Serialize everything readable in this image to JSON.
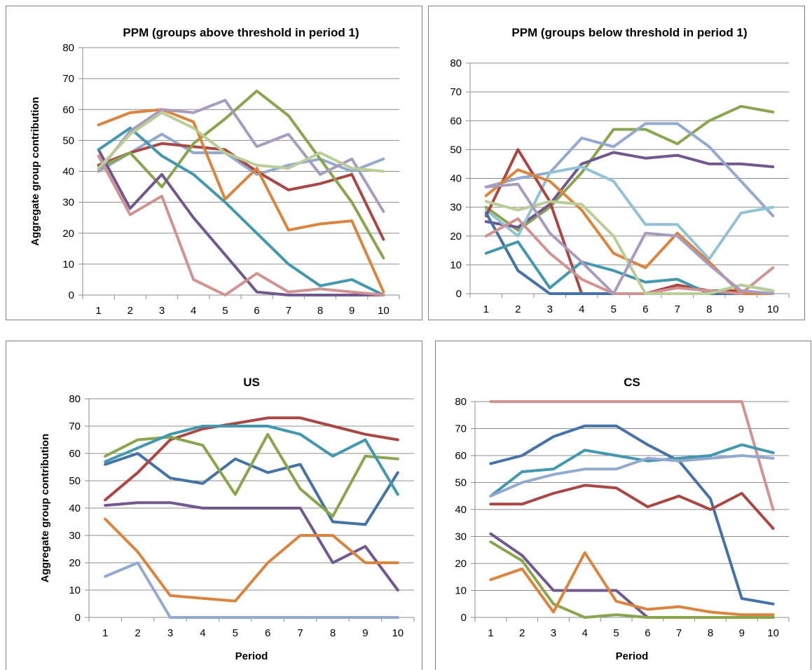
{
  "palette": [
    "#4572a7",
    "#aa4643",
    "#89a54e",
    "#71588f",
    "#4198af",
    "#db843d",
    "#93a9cf",
    "#d19392",
    "#b9cd96",
    "#a99bbd",
    "#91c3d5",
    "#e8a56c"
  ],
  "chart_data": [
    {
      "type": "line",
      "title": "PPM (groups above threshold in period 1)",
      "ylabel": "Aggregate group contribution",
      "xlabel": "",
      "x": [
        1,
        2,
        3,
        4,
        5,
        6,
        7,
        8,
        9,
        10
      ],
      "ylim": [
        0,
        80
      ],
      "yticks": [
        0,
        10,
        20,
        30,
        40,
        50,
        60,
        70,
        80
      ],
      "grid": true,
      "series": [
        {
          "color": "#93a9cf",
          "values": [
            40,
            46,
            52,
            46,
            46,
            39,
            42,
            44,
            40,
            44
          ]
        },
        {
          "color": "#aa4643",
          "values": [
            42,
            46,
            49,
            48,
            47,
            40,
            34,
            36,
            39,
            18
          ]
        },
        {
          "color": "#89a54e",
          "values": [
            41,
            46,
            35,
            49,
            57,
            66,
            58,
            44,
            30,
            12
          ]
        },
        {
          "color": "#71588f",
          "values": [
            47,
            28,
            39,
            25,
            13,
            1,
            0,
            0,
            0,
            0
          ]
        },
        {
          "color": "#4198af",
          "values": [
            47,
            54,
            45,
            39,
            30,
            20,
            10,
            3,
            5,
            0
          ]
        },
        {
          "color": "#db843d",
          "values": [
            55,
            59,
            60,
            56,
            31,
            41,
            21,
            23,
            24,
            1
          ]
        },
        {
          "color": "#d19392",
          "values": [
            45,
            26,
            32,
            5,
            0,
            7,
            1,
            2,
            1,
            0
          ]
        },
        {
          "color": "#a99bbd",
          "values": [
            40,
            53,
            60,
            59,
            63,
            48,
            52,
            39,
            44,
            27
          ]
        },
        {
          "color": "#b9cd96",
          "values": [
            41,
            52,
            59,
            54,
            46,
            42,
            41,
            46,
            41,
            40
          ]
        }
      ]
    },
    {
      "type": "line",
      "title": "PPM (groups below threshold in period 1)",
      "ylabel": "",
      "xlabel": "",
      "x": [
        1,
        2,
        3,
        4,
        5,
        6,
        7,
        8,
        9,
        10
      ],
      "ylim": [
        0,
        80
      ],
      "yticks": [
        0,
        10,
        20,
        30,
        40,
        50,
        60,
        70,
        80
      ],
      "grid": true,
      "series": [
        {
          "color": "#89a54e",
          "values": [
            30,
            22,
            30,
            42,
            57,
            57,
            52,
            60,
            65,
            63
          ]
        },
        {
          "color": "#71588f",
          "values": [
            25,
            23,
            31,
            45,
            49,
            47,
            48,
            45,
            45,
            44
          ]
        },
        {
          "color": "#93a9cf",
          "values": [
            37,
            40,
            42,
            54,
            51,
            59,
            59,
            51,
            39,
            27
          ]
        },
        {
          "color": "#91c3d5",
          "values": [
            29,
            20,
            42,
            44,
            39,
            24,
            24,
            12,
            28,
            30
          ]
        },
        {
          "color": "#aa4643",
          "values": [
            27,
            50,
            32,
            0,
            0,
            0,
            3,
            1,
            1,
            0
          ]
        },
        {
          "color": "#4572a7",
          "values": [
            28,
            8,
            0,
            0,
            0,
            0,
            0,
            0,
            0,
            0
          ]
        },
        {
          "color": "#4198af",
          "values": [
            14,
            18,
            2,
            11,
            8,
            4,
            5,
            0,
            3,
            1
          ]
        },
        {
          "color": "#db843d",
          "values": [
            34,
            43,
            39,
            29,
            14,
            9,
            21,
            11,
            0,
            0
          ]
        },
        {
          "color": "#d19392",
          "values": [
            20,
            26,
            14,
            5,
            0,
            0,
            2,
            1,
            0,
            9
          ]
        },
        {
          "color": "#b9cd96",
          "values": [
            32,
            29,
            32,
            31,
            20,
            0,
            0,
            0,
            3,
            1
          ]
        },
        {
          "color": "#a99bbd",
          "values": [
            37,
            38,
            21,
            11,
            0,
            21,
            20,
            10,
            1,
            0
          ]
        }
      ]
    },
    {
      "type": "line",
      "title": "US",
      "ylabel": "Aggregate group contribution",
      "xlabel": "Period",
      "x": [
        1,
        2,
        3,
        4,
        5,
        6,
        7,
        8,
        9,
        10
      ],
      "ylim": [
        0,
        80
      ],
      "yticks": [
        0,
        10,
        20,
        30,
        40,
        50,
        60,
        70,
        80
      ],
      "grid": true,
      "series": [
        {
          "color": "#4572a7",
          "values": [
            56,
            60,
            51,
            49,
            58,
            53,
            56,
            35,
            34,
            53
          ]
        },
        {
          "color": "#aa4643",
          "values": [
            43,
            53,
            65,
            69,
            71,
            73,
            73,
            70,
            67,
            65
          ]
        },
        {
          "color": "#89a54e",
          "values": [
            59,
            65,
            66,
            63,
            45,
            67,
            47,
            37,
            59,
            58
          ]
        },
        {
          "color": "#71588f",
          "values": [
            41,
            42,
            42,
            40,
            40,
            40,
            40,
            20,
            26,
            10
          ]
        },
        {
          "color": "#4198af",
          "values": [
            57,
            62,
            67,
            70,
            70,
            70,
            67,
            59,
            65,
            45
          ]
        },
        {
          "color": "#db843d",
          "values": [
            36,
            24,
            8,
            7,
            6,
            20,
            30,
            30,
            20,
            20
          ]
        },
        {
          "color": "#93a9cf",
          "values": [
            15,
            20,
            0,
            0,
            0,
            0,
            0,
            0,
            0,
            0
          ]
        }
      ]
    },
    {
      "type": "line",
      "title": "CS",
      "ylabel": "",
      "xlabel": "Period",
      "x": [
        1,
        2,
        3,
        4,
        5,
        6,
        7,
        8,
        9,
        10
      ],
      "ylim": [
        0,
        80
      ],
      "yticks": [
        0,
        10,
        20,
        30,
        40,
        50,
        60,
        70,
        80
      ],
      "grid": true,
      "series": [
        {
          "color": "#d19392",
          "values": [
            80,
            80,
            80,
            80,
            80,
            80,
            80,
            80,
            80,
            40
          ]
        },
        {
          "color": "#4572a7",
          "values": [
            57,
            60,
            67,
            71,
            71,
            64,
            58,
            44,
            7,
            5
          ]
        },
        {
          "color": "#4198af",
          "values": [
            45,
            54,
            55,
            62,
            60,
            58,
            59,
            60,
            64,
            61
          ]
        },
        {
          "color": "#93a9cf",
          "values": [
            45,
            50,
            53,
            55,
            55,
            59,
            58,
            59,
            60,
            59
          ]
        },
        {
          "color": "#aa4643",
          "values": [
            42,
            42,
            46,
            49,
            48,
            41,
            45,
            40,
            46,
            33
          ]
        },
        {
          "color": "#71588f",
          "values": [
            31,
            23,
            10,
            10,
            10,
            0,
            0,
            0,
            0,
            0
          ]
        },
        {
          "color": "#89a54e",
          "values": [
            28,
            21,
            5,
            0,
            1,
            0,
            0,
            0,
            0,
            0
          ]
        },
        {
          "color": "#db843d",
          "values": [
            14,
            18,
            2,
            24,
            6,
            3,
            4,
            2,
            1,
            1
          ]
        }
      ]
    }
  ]
}
